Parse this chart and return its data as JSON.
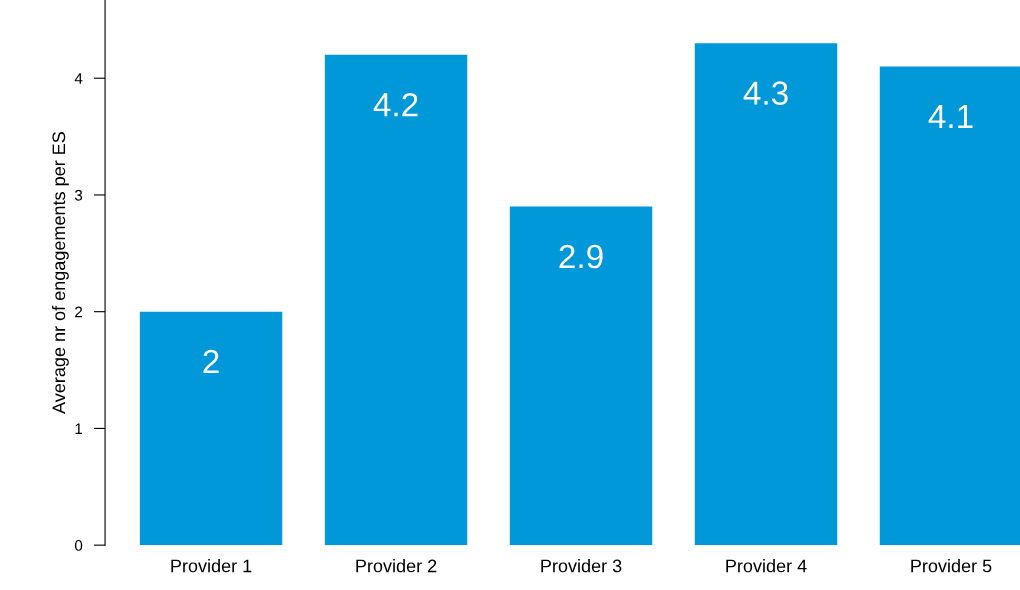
{
  "chart_data": {
    "type": "bar",
    "ylabel": "Average nr of engagements per ES",
    "categories": [
      "Provider 1",
      "Provider 2",
      "Provider 3",
      "Provider 4",
      "Provider 5"
    ],
    "values": [
      2,
      4.2,
      2.9,
      4.3,
      4.1
    ],
    "color": "#0098d8",
    "ylim": [
      0,
      4.67
    ],
    "yticks": [
      0,
      1,
      2,
      3,
      4
    ],
    "grid": false,
    "data_labels": true
  }
}
